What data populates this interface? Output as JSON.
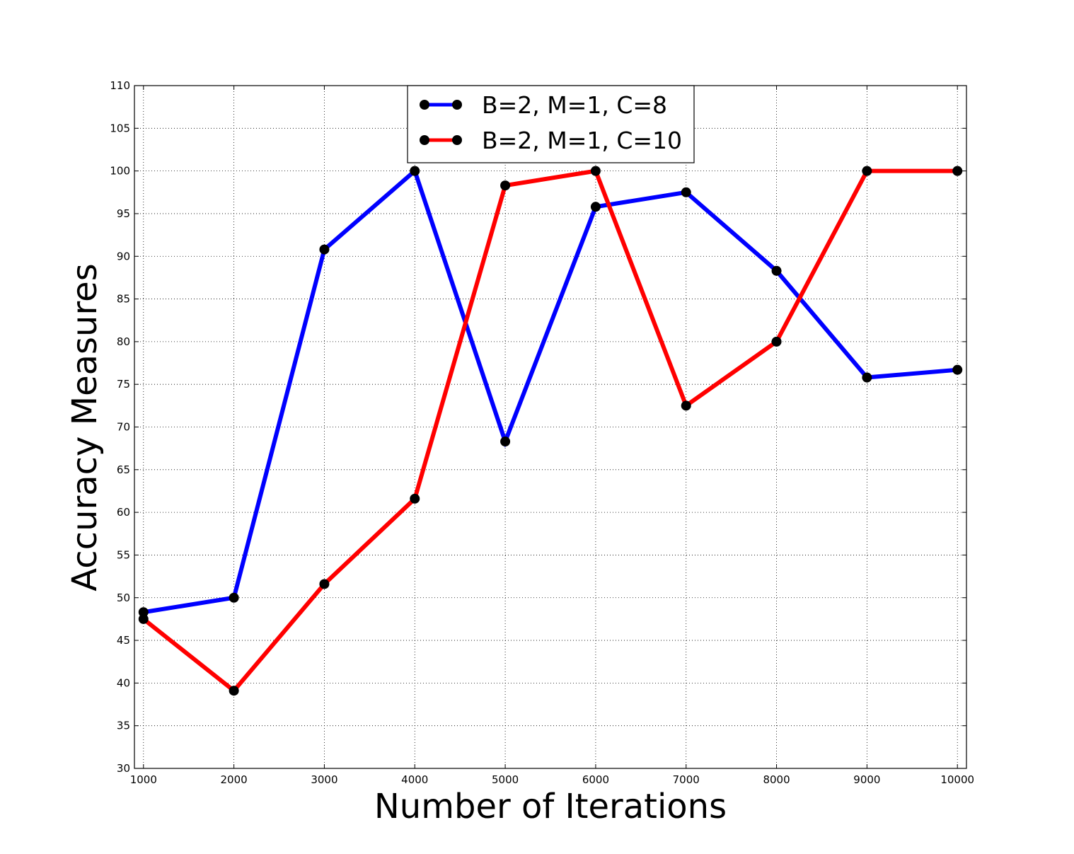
{
  "chart_data": {
    "type": "line",
    "title": "",
    "xlabel": "Number of Iterations",
    "ylabel": "Accuracy Measures",
    "x": [
      1000,
      2000,
      3000,
      4000,
      5000,
      6000,
      7000,
      8000,
      9000,
      10000
    ],
    "xlim": [
      900,
      10100
    ],
    "ylim": [
      30,
      110
    ],
    "xticks": [
      "1000",
      "2000",
      "3000",
      "4000",
      "5000",
      "6000",
      "7000",
      "8000",
      "9000",
      "10000"
    ],
    "yticks": [
      "30",
      "35",
      "40",
      "45",
      "50",
      "55",
      "60",
      "65",
      "70",
      "75",
      "80",
      "85",
      "90",
      "95",
      "100",
      "105",
      "110"
    ],
    "grid": true,
    "grid_style": "dotted",
    "legend_position": "upper center",
    "marker_color": "#000000",
    "series": [
      {
        "name": "B=2, M=1, C=8",
        "color": "#0000ff",
        "marker": "circle",
        "values": [
          48.3,
          50.0,
          90.8,
          100.0,
          68.3,
          95.8,
          97.5,
          88.3,
          75.8,
          76.7
        ]
      },
      {
        "name": "B=2, M=1, C=10",
        "color": "#ff0000",
        "marker": "circle",
        "values": [
          47.5,
          39.1,
          51.6,
          61.6,
          98.3,
          100.0,
          72.5,
          80.0,
          100.0,
          100.0
        ]
      }
    ]
  }
}
